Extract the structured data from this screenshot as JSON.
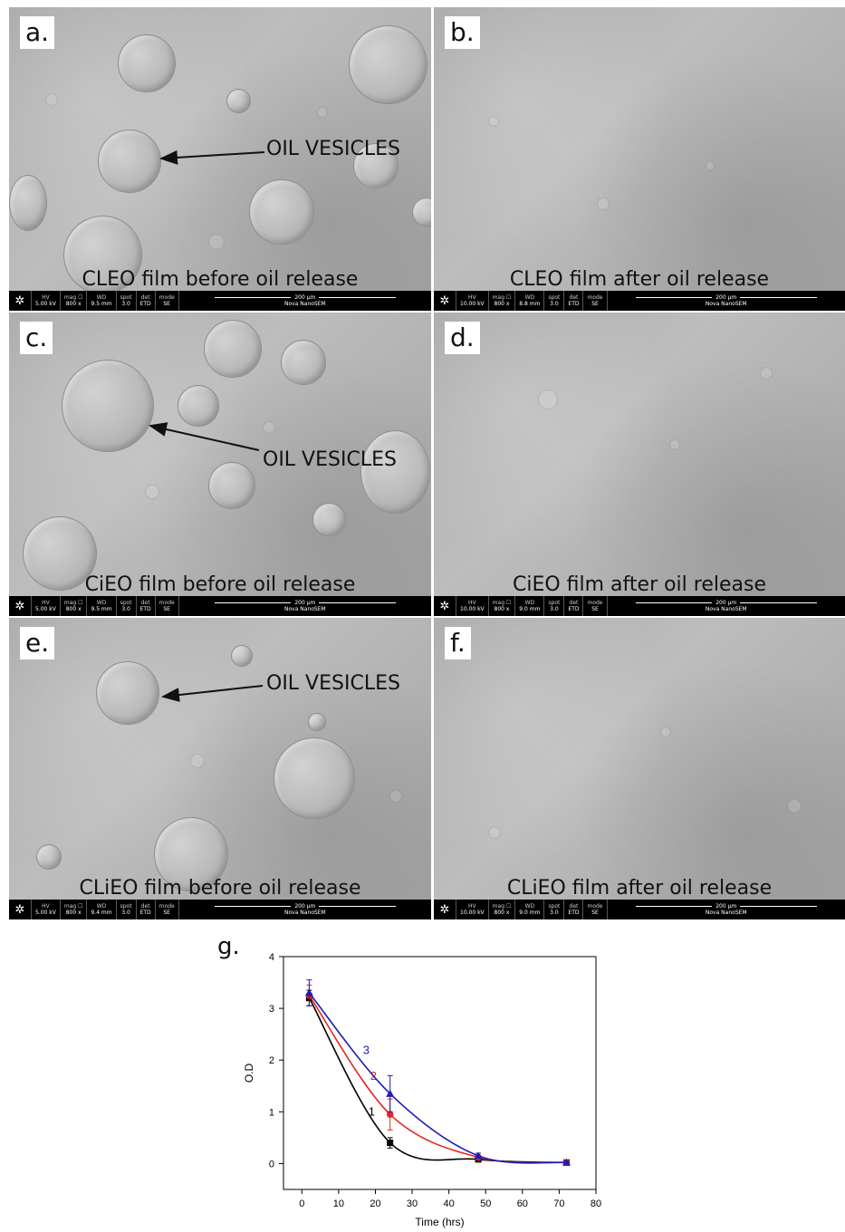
{
  "panels": [
    {
      "letter": "a.",
      "caption": "CLEO film before oil release",
      "annotation": "OIL VESICLES",
      "databar": {
        "hv_label": "HV",
        "hv": "5.00 kV",
        "mag_label": "mag ☐",
        "mag": "800 x",
        "wd_label": "WD",
        "wd": "9.5 mm",
        "spot_label": "spot",
        "spot": "3.0",
        "det_label": "det",
        "det": "ETD",
        "mode_label": "mode",
        "mode": "SE",
        "scale": "200 µm",
        "instrument": "Nova NanoSEM"
      }
    },
    {
      "letter": "b.",
      "caption": "CLEO film after oil release",
      "databar": {
        "hv_label": "HV",
        "hv": "10.00 kV",
        "mag_label": "mag ☐",
        "mag": "800 x",
        "wd_label": "WD",
        "wd": "8.8 mm",
        "spot_label": "spot",
        "spot": "3.0",
        "det_label": "det",
        "det": "ETD",
        "mode_label": "mode",
        "mode": "SE",
        "scale": "200 µm",
        "instrument": "Nova NanoSEM"
      }
    },
    {
      "letter": "c.",
      "caption": "CiEO film before oil release",
      "annotation": "OIL VESICLES",
      "databar": {
        "hv_label": "HV",
        "hv": "5.00 kV",
        "mag_label": "mag ☐",
        "mag": "800 x",
        "wd_label": "WD",
        "wd": "9.5 mm",
        "spot_label": "spot",
        "spot": "3.0",
        "det_label": "det",
        "det": "ETD",
        "mode_label": "mode",
        "mode": "SE",
        "scale": "200 µm",
        "instrument": "Nova NanoSEM"
      }
    },
    {
      "letter": "d.",
      "caption": "CiEO film after oil release",
      "databar": {
        "hv_label": "HV",
        "hv": "10.00 kV",
        "mag_label": "mag ☐",
        "mag": "800 x",
        "wd_label": "WD",
        "wd": "9.0 mm",
        "spot_label": "spot",
        "spot": "3.0",
        "det_label": "det",
        "det": "ETD",
        "mode_label": "mode",
        "mode": "SE",
        "scale": "200 µm",
        "instrument": "Nova NanoSEM"
      }
    },
    {
      "letter": "e.",
      "caption": "CLiEO film before oil release",
      "annotation": "OIL VESICLES",
      "databar": {
        "hv_label": "HV",
        "hv": "5.00 kV",
        "mag_label": "mag ☐",
        "mag": "800 x",
        "wd_label": "WD",
        "wd": "9.4 mm",
        "spot_label": "spot",
        "spot": "3.0",
        "det_label": "det",
        "det": "ETD",
        "mode_label": "mode",
        "mode": "SE",
        "scale": "200 µm",
        "instrument": "Nova NanoSEM"
      }
    },
    {
      "letter": "f.",
      "caption": "CLiEO film after oil release",
      "databar": {
        "hv_label": "HV",
        "hv": "10.00 kV",
        "mag_label": "mag ☐",
        "mag": "800 x",
        "wd_label": "WD",
        "wd": "9.0 mm",
        "spot_label": "spot",
        "spot": "3.0",
        "det_label": "det",
        "det": "ETD",
        "mode_label": "mode",
        "mode": "SE",
        "scale": "200 µm",
        "instrument": "Nova NanoSEM"
      }
    }
  ],
  "panel_g_letter": "g.",
  "chart_data": {
    "type": "line",
    "title": "",
    "xlabel": "Time (hrs)",
    "ylabel": "O.D",
    "xlim": [
      -5,
      80
    ],
    "ylim": [
      -0.5,
      4
    ],
    "xticks": [
      0,
      10,
      20,
      30,
      40,
      50,
      60,
      70,
      80
    ],
    "yticks": [
      0,
      1,
      2,
      3,
      4
    ],
    "grid": false,
    "series": [
      {
        "name": "1",
        "color": "#000000",
        "marker": "square",
        "x": [
          2,
          24,
          48,
          72
        ],
        "y": [
          3.2,
          0.4,
          0.08,
          0.02
        ],
        "err": [
          0.15,
          0.1,
          0.03,
          0.02
        ]
      },
      {
        "name": "2",
        "color": "#e8261f",
        "marker": "circle",
        "x": [
          2,
          24,
          48,
          72
        ],
        "y": [
          3.25,
          0.95,
          0.12,
          0.02
        ],
        "err": [
          0.2,
          0.3,
          0.04,
          0.02
        ]
      },
      {
        "name": "3",
        "color": "#1c1cb8",
        "marker": "triangle",
        "x": [
          2,
          24,
          48,
          72
        ],
        "y": [
          3.3,
          1.35,
          0.15,
          0.02
        ],
        "err": [
          0.25,
          0.35,
          0.05,
          0.02
        ]
      }
    ]
  }
}
